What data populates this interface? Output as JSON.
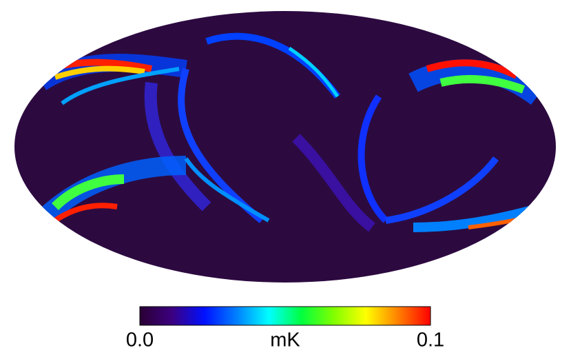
{
  "chart_data": {
    "type": "mollweide",
    "colorbar": {
      "lim": [
        0,
        0.1
      ],
      "ticks": [
        {
          "value": 0,
          "label": "0.0"
        },
        0.1
      ],
      "label": "mK",
      "colormap": [
        "#2a0033",
        "#3c0080",
        "#0010ff",
        "#0080ff",
        "#00ffff",
        "#00ff40",
        "#80ff00",
        "#ffff00",
        "#ff8000",
        "#ff0000"
      ]
    },
    "background": "#2c0a40"
  }
}
